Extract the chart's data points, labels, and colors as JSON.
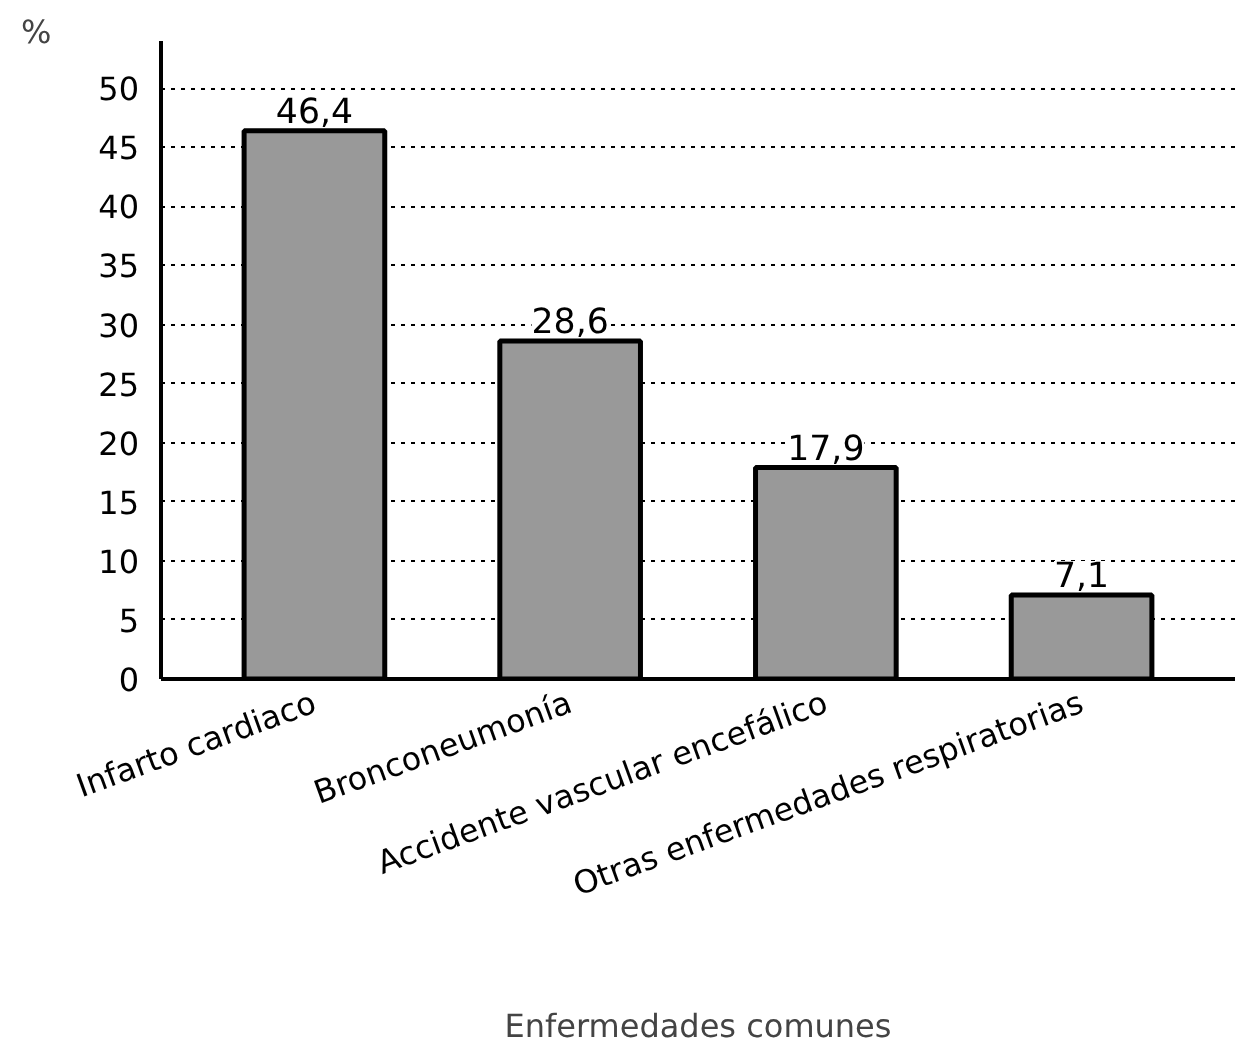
{
  "chart_data": {
    "type": "bar",
    "ylabel": "%",
    "xlabel": "Enfermedades comunes",
    "categories": [
      "Infarto cardiaco",
      "Bronconeumonía",
      "Accidente vascular encefálico",
      "Otras enfermedades respiratorias"
    ],
    "values": [
      46.4,
      28.6,
      17.9,
      7.1
    ],
    "value_labels": [
      "46,4",
      "28,6",
      "17,9",
      "7,1"
    ],
    "color": "#999999",
    "ylim": [
      0,
      54
    ],
    "yticks": [
      0,
      5,
      10,
      15,
      20,
      25,
      30,
      35,
      40,
      45,
      50
    ],
    "grid": "y",
    "line_style": "dotted"
  }
}
